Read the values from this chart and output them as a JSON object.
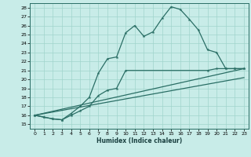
{
  "xlabel": "Humidex (Indice chaleur)",
  "bg_color": "#c8ece8",
  "line_color": "#2a6e65",
  "grid_color": "#a0d4cc",
  "xlim": [
    -0.5,
    23.5
  ],
  "ylim": [
    14.5,
    28.5
  ],
  "xticks": [
    0,
    1,
    2,
    3,
    4,
    5,
    6,
    7,
    8,
    9,
    10,
    11,
    12,
    13,
    14,
    15,
    16,
    17,
    18,
    19,
    20,
    21,
    22,
    23
  ],
  "yticks": [
    15,
    16,
    17,
    18,
    19,
    20,
    21,
    22,
    23,
    24,
    25,
    26,
    27,
    28
  ],
  "line1_x": [
    0,
    1,
    2,
    3,
    4,
    5,
    6,
    7,
    8,
    9,
    10,
    11,
    12,
    13,
    14,
    15,
    16,
    17,
    18,
    19,
    20,
    21,
    22,
    23
  ],
  "line1_y": [
    16.0,
    15.8,
    15.6,
    15.5,
    16.2,
    17.0,
    18.0,
    20.7,
    22.3,
    22.5,
    25.2,
    26.0,
    24.8,
    25.3,
    26.8,
    28.1,
    27.8,
    26.7,
    25.5,
    23.3,
    23.0,
    21.2,
    21.2,
    21.2
  ],
  "line2_x": [
    0,
    1,
    2,
    3,
    4,
    5,
    6,
    7,
    8,
    9,
    10,
    19,
    20,
    21,
    22,
    23
  ],
  "line2_y": [
    16.0,
    15.8,
    15.6,
    15.5,
    16.0,
    16.5,
    17.0,
    18.2,
    18.8,
    19.0,
    21.0,
    21.0,
    21.2,
    21.2,
    21.2,
    21.2
  ],
  "line3_x": [
    0,
    23
  ],
  "line3_y": [
    16.0,
    21.2
  ],
  "line4_x": [
    0,
    23
  ],
  "line4_y": [
    16.0,
    20.2
  ]
}
